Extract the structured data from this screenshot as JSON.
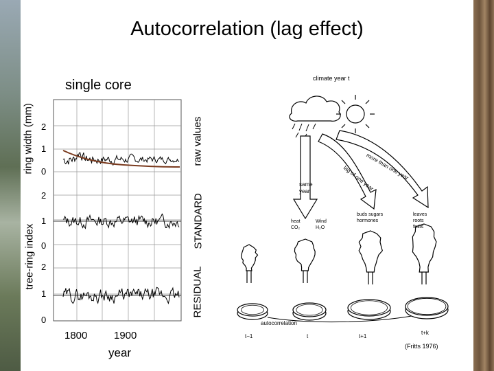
{
  "title": "Autocorrelation (lag effect)",
  "left_panel": {
    "heading": "single core",
    "axis_ring_width": "ring width (mm)",
    "axis_tree_ring_index": "tree-ring index",
    "label_raw": "raw values",
    "label_standard": "STANDARD",
    "label_residual": "RESIDUAL",
    "xlabel": "year",
    "x_ticks": [
      "1800",
      "1900"
    ],
    "raw_ticks": [
      "2",
      "1",
      "0"
    ],
    "standard_ticks": [
      "2",
      "1",
      "0"
    ],
    "residual_ticks": [
      "2",
      "1",
      "0"
    ]
  },
  "right_panel": {
    "climate": "climate year t",
    "arrow_same": "same year",
    "arrow_lag1": "lag of one year",
    "arrow_more": "more than one year",
    "col1": "heat CO₂",
    "col2": "Wind H₂O",
    "col3": "buds sugars hormones",
    "col4": "leaves roots fruits",
    "autocorrelation": "autocorrelation",
    "times": [
      "t−1",
      "t",
      "t+1",
      "t+k"
    ],
    "citation": "(Fritts 1976)"
  }
}
